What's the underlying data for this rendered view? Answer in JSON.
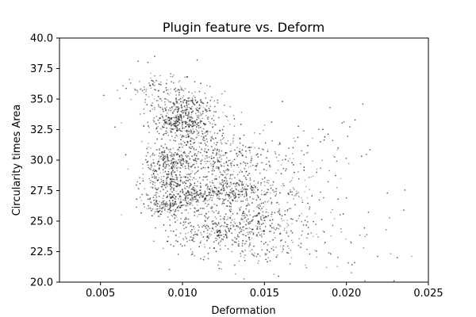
{
  "chart_data": {
    "type": "scatter",
    "title": "Plugin feature vs. Deform",
    "xlabel": "Deformation",
    "ylabel": "Circularity times Area",
    "xlim": [
      0.0025,
      0.025
    ],
    "ylim": [
      20.0,
      40.0
    ],
    "xticks": [
      "0.005",
      "0.010",
      "0.015",
      "0.020",
      "0.025"
    ],
    "yticks": [
      "20.0",
      "22.5",
      "25.0",
      "27.5",
      "30.0",
      "32.5",
      "35.0",
      "37.5",
      "40.0"
    ],
    "marker_color": "#000000",
    "grid": false,
    "clusters": [
      {
        "x": 0.0085,
        "y": 36.0,
        "sx": 0.0012,
        "sy": 0.55,
        "n": 80
      },
      {
        "x": 0.01,
        "y": 34.2,
        "sx": 0.0011,
        "sy": 0.75,
        "n": 300
      },
      {
        "x": 0.0095,
        "y": 33.0,
        "sx": 0.0009,
        "sy": 0.35,
        "n": 150
      },
      {
        "x": 0.0108,
        "y": 32.0,
        "sx": 0.0013,
        "sy": 0.9,
        "n": 200
      },
      {
        "x": 0.0092,
        "y": 29.8,
        "sx": 0.0008,
        "sy": 0.7,
        "n": 250
      },
      {
        "x": 0.0093,
        "y": 28.2,
        "sx": 0.0008,
        "sy": 0.4,
        "n": 140
      },
      {
        "x": 0.0122,
        "y": 30.0,
        "sx": 0.0013,
        "sy": 0.8,
        "n": 200
      },
      {
        "x": 0.013,
        "y": 27.5,
        "sx": 0.0015,
        "sy": 0.6,
        "n": 280
      },
      {
        "x": 0.0106,
        "y": 27.0,
        "sx": 0.0012,
        "sy": 0.45,
        "n": 200
      },
      {
        "x": 0.009,
        "y": 26.2,
        "sx": 0.0008,
        "sy": 0.4,
        "n": 150
      },
      {
        "x": 0.0138,
        "y": 25.0,
        "sx": 0.0018,
        "sy": 0.9,
        "n": 280
      },
      {
        "x": 0.0115,
        "y": 24.0,
        "sx": 0.0016,
        "sy": 0.7,
        "n": 150
      },
      {
        "x": 0.0145,
        "y": 23.0,
        "sx": 0.0022,
        "sy": 1.0,
        "n": 150
      },
      {
        "x": 0.015,
        "y": 29.0,
        "sx": 0.002,
        "sy": 1.6,
        "n": 150
      },
      {
        "x": 0.0165,
        "y": 26.0,
        "sx": 0.0025,
        "sy": 2.0,
        "n": 90
      },
      {
        "x": 0.0175,
        "y": 31.0,
        "sx": 0.002,
        "sy": 1.2,
        "n": 30
      },
      {
        "x": 0.02,
        "y": 23.0,
        "sx": 0.002,
        "sy": 1.2,
        "n": 20
      }
    ],
    "outliers": [
      {
        "x": 0.0052,
        "y": 35.3
      },
      {
        "x": 0.0073,
        "y": 38.1
      },
      {
        "x": 0.0079,
        "y": 38.0
      },
      {
        "x": 0.0083,
        "y": 38.5
      },
      {
        "x": 0.0109,
        "y": 38.2
      },
      {
        "x": 0.0161,
        "y": 34.8
      },
      {
        "x": 0.019,
        "y": 34.3
      },
      {
        "x": 0.021,
        "y": 34.6
      },
      {
        "x": 0.0205,
        "y": 21.6
      },
      {
        "x": 0.0219,
        "y": 22.1
      },
      {
        "x": 0.0231,
        "y": 22.0
      },
      {
        "x": 0.0229,
        "y": 20.1
      },
      {
        "x": 0.0235,
        "y": 25.9
      },
      {
        "x": 0.0225,
        "y": 27.3
      },
      {
        "x": 0.0195,
        "y": 31.0
      }
    ]
  }
}
